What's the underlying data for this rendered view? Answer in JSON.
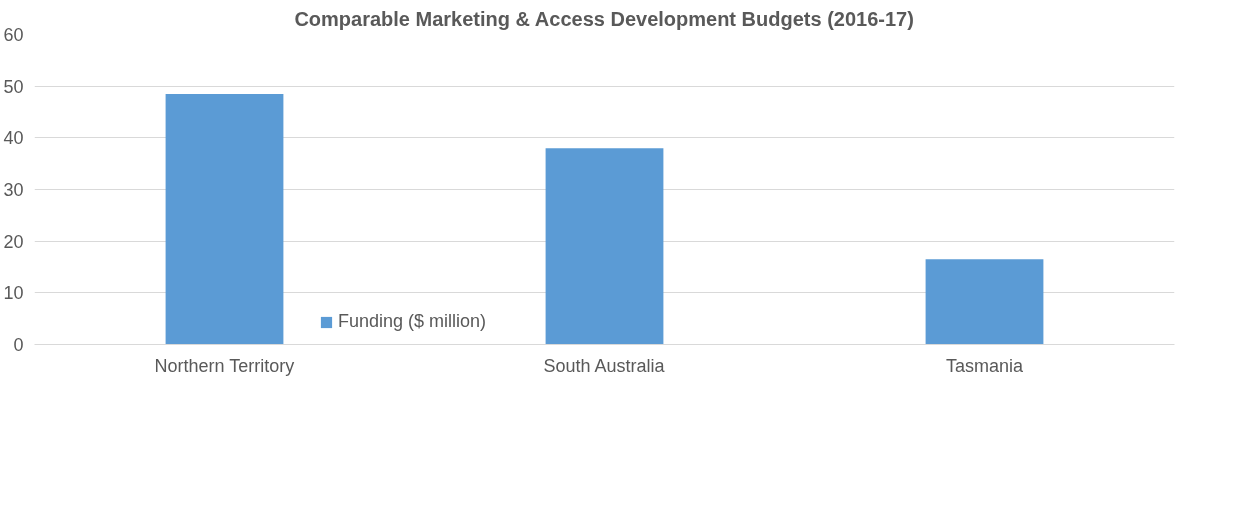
{
  "chart_data": {
    "type": "bar",
    "title": "Comparable Marketing & Access Development Budgets (2016-17)",
    "categories": [
      "Northern Territory",
      "South Australia",
      "Tasmania"
    ],
    "series": [
      {
        "name": "Funding ($ million)",
        "color": "#5b9bd5",
        "values": [
          48.5,
          38.0,
          16.5
        ]
      }
    ],
    "ylim": [
      0,
      60
    ],
    "yticks": [
      0,
      10,
      20,
      30,
      40,
      50,
      60
    ],
    "grid": "y",
    "legend": "bottom"
  }
}
